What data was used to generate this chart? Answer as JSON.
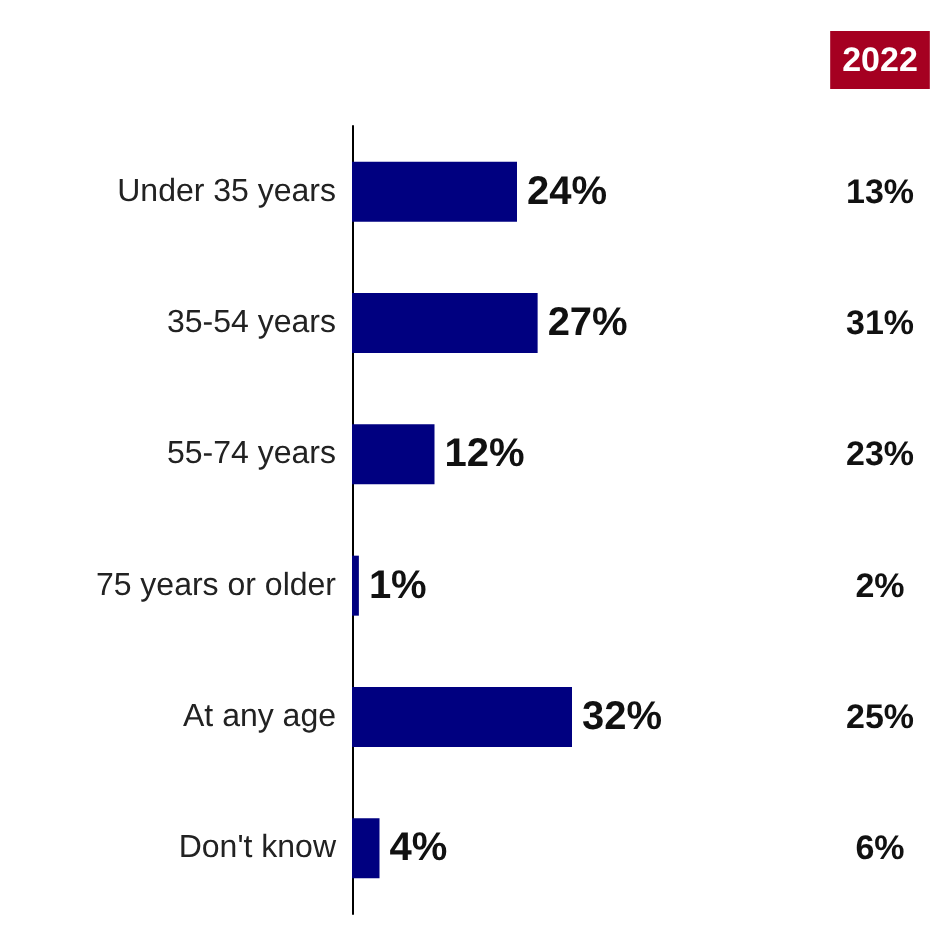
{
  "chart_data": {
    "type": "bar",
    "orientation": "horizontal",
    "categories": [
      "Under 35 years",
      "35-54 years",
      "55-74 years",
      "75 years or older",
      "At any age",
      "Don't know"
    ],
    "values": [
      24,
      27,
      12,
      1,
      32,
      4
    ],
    "color": "#000080",
    "data_labels": true,
    "value_labels": [
      "24%",
      "27%",
      "12%",
      "1%",
      "32%",
      "4%"
    ],
    "annotations": [
      "2022",
      "13%",
      "31%",
      "23%",
      "2%",
      "25%",
      "6%"
    ]
  }
}
